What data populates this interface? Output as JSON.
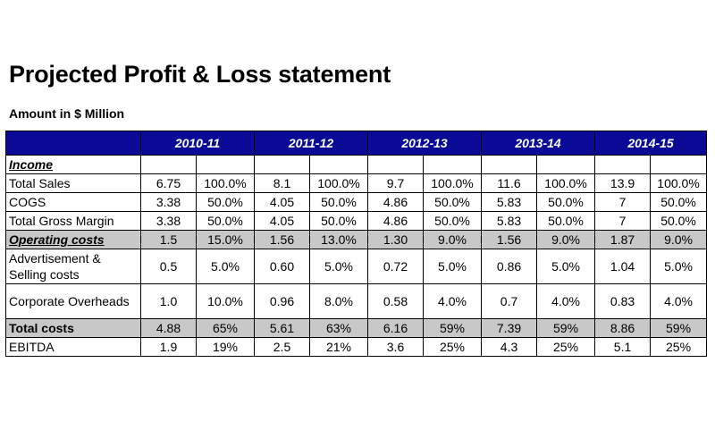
{
  "title": "Projected Profit & Loss statement",
  "subtitle": "Amount in $ Million",
  "years": [
    "2010-11",
    "2011-12",
    "2012-13",
    "2013-14",
    "2014-15"
  ],
  "rows": {
    "income": {
      "label": "Income"
    },
    "total_sales": {
      "label": "Total Sales",
      "values": [
        "6.75",
        "100.0%",
        "8.1",
        "100.0%",
        "9.7",
        "100.0%",
        "11.6",
        "100.0%",
        "13.9",
        "100.0%"
      ]
    },
    "cogs": {
      "label": "COGS",
      "values": [
        "3.38",
        "50.0%",
        "4.05",
        "50.0%",
        "4.86",
        "50.0%",
        "5.83",
        "50.0%",
        "7",
        "50.0%"
      ]
    },
    "gross_margin": {
      "label": "Total Gross Margin",
      "values": [
        "3.38",
        "50.0%",
        "4.05",
        "50.0%",
        "4.86",
        "50.0%",
        "5.83",
        "50.0%",
        "7",
        "50.0%"
      ]
    },
    "operating_costs": {
      "label": "Operating costs",
      "values": [
        "1.5",
        "15.0%",
        "1.56",
        "13.0%",
        "1.30",
        "9.0%",
        "1.56",
        "9.0%",
        "1.87",
        "9.0%"
      ]
    },
    "advertisement": {
      "label": "Advertisement & Selling costs",
      "values": [
        "0.5",
        "5.0%",
        "0.60",
        "5.0%",
        "0.72",
        "5.0%",
        "0.86",
        "5.0%",
        "1.04",
        "5.0%"
      ]
    },
    "corporate": {
      "label": "Corporate Overheads",
      "values": [
        "1.0",
        "10.0%",
        "0.96",
        "8.0%",
        "0.58",
        "4.0%",
        "0.7",
        "4.0%",
        "0.83",
        "4.0%"
      ]
    },
    "total_costs": {
      "label": "Total costs",
      "values": [
        "4.88",
        "65%",
        "5.61",
        "63%",
        "6.16",
        "59%",
        "7.39",
        "59%",
        "8.86",
        "59%"
      ]
    },
    "ebitda": {
      "label": "EBITDA",
      "values": [
        "1.9",
        "19%",
        "2.5",
        "21%",
        "3.6",
        "25%",
        "4.3",
        "25%",
        "5.1",
        "25%"
      ]
    }
  },
  "colors": {
    "header_bg": "#0a0a96",
    "header_text": "#ffffff",
    "shaded_row": "#c8c8c8"
  }
}
